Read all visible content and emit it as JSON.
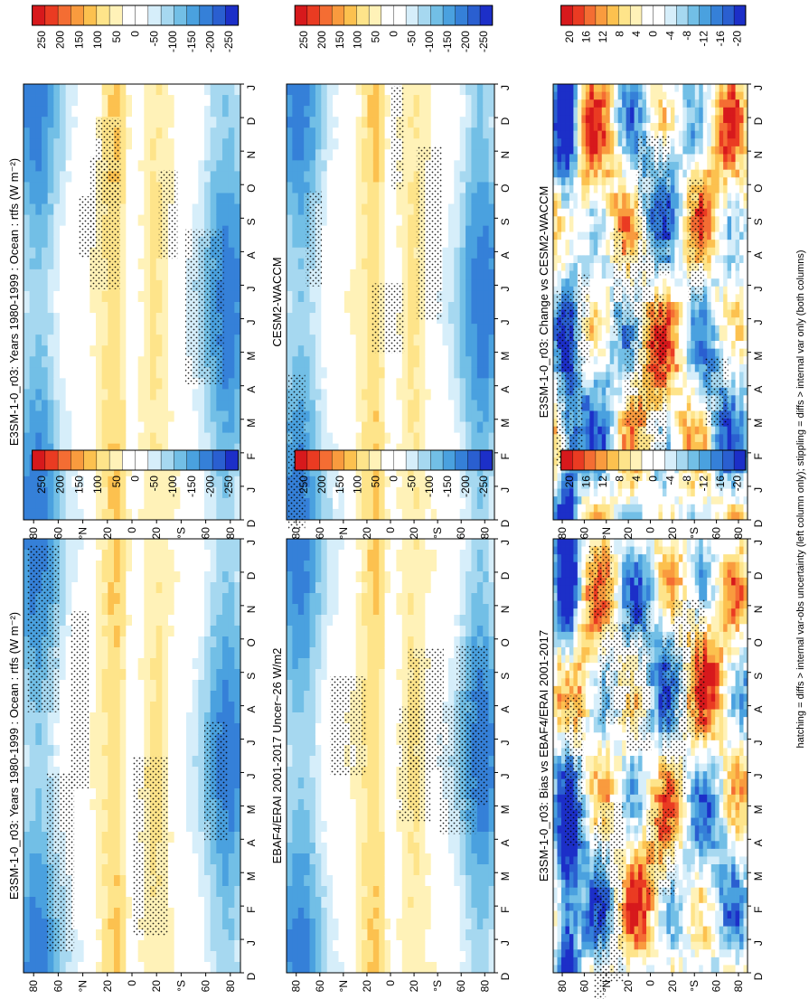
{
  "footer": "hatching = diffs > internal var-obs uncertainty (left column only); stippling = diffs > internal var only (both columns)",
  "lat_ticks": [
    "80",
    "60",
    "°N",
    "20",
    "0",
    "20",
    "°S",
    "60",
    "80"
  ],
  "month_ticks": [
    "D",
    "J",
    "F",
    "M",
    "A",
    "M",
    "J",
    "J",
    "A",
    "S",
    "O",
    "N",
    "D",
    "J"
  ],
  "chart_data": [
    {
      "type": "heatmap",
      "title": "E3SM-1-0_r03: Years 1980-1999 : Ocean : rtfs (W m⁻²)",
      "x_label": "",
      "y_label": "",
      "field": "absolute",
      "colorbar": [
        "250",
        "200",
        "150",
        "100",
        "50",
        "0",
        "-50",
        "-100",
        "-150",
        "-200",
        "-250"
      ]
    },
    {
      "type": "heatmap",
      "title": "E3SM-1-0_r03: Years 1980-1999 : Ocean : rtfs (W m⁻²)",
      "field": "absolute",
      "colorbar": [
        "250",
        "200",
        "150",
        "100",
        "50",
        "0",
        "-50",
        "-100",
        "-150",
        "-200",
        "-250"
      ]
    },
    {
      "type": "heatmap",
      "title": "EBAF4/ERAI 2001-2017 Uncer~26 W/m2",
      "field": "absolute",
      "colorbar": [
        "250",
        "200",
        "150",
        "100",
        "50",
        "0",
        "-50",
        "-100",
        "-150",
        "-200",
        "-250"
      ]
    },
    {
      "type": "heatmap",
      "title": "CESM2-WACCM",
      "field": "absolute",
      "colorbar": [
        "250",
        "200",
        "150",
        "100",
        "50",
        "0",
        "-50",
        "-100",
        "-150",
        "-200",
        "-250"
      ]
    },
    {
      "type": "heatmap",
      "title": "E3SM-1-0_r03: Bias vs EBAF4/ERAI 2001-2017",
      "field": "diff",
      "colorbar": [
        "20",
        "16",
        "12",
        "8",
        "4",
        "0",
        "-4",
        "-8",
        "-12",
        "-16",
        "-20"
      ]
    },
    {
      "type": "heatmap",
      "title": "E3SM-1-0_r03: Change vs CESM2-WACCM",
      "field": "diff",
      "colorbar": [
        "20",
        "16",
        "12",
        "8",
        "4",
        "0",
        "-4",
        "-8",
        "-12",
        "-16",
        "-20"
      ]
    }
  ],
  "colors": {
    "scale": [
      "#d7191c",
      "#ea3b22",
      "#f46d33",
      "#f99b3e",
      "#fcc14f",
      "#fee48a",
      "#fff2b8",
      "#ffffff",
      "#ffffff",
      "#d6eefa",
      "#a6d8f0",
      "#72bfe6",
      "#4aa1df",
      "#3580d8",
      "#2a5fd0",
      "#1c2fc8"
    ]
  }
}
